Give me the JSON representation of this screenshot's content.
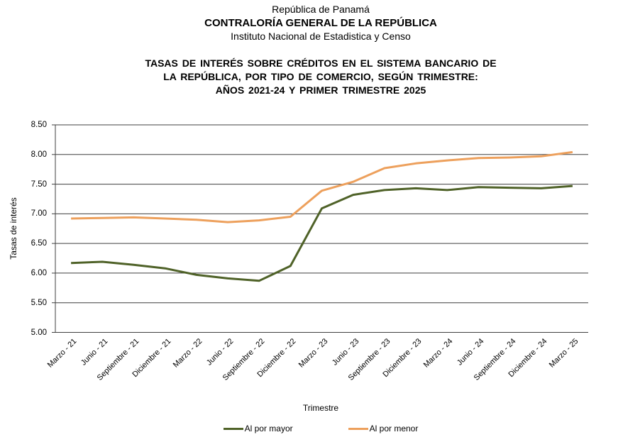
{
  "header": {
    "line1": "República de Panamá",
    "line2": "CONTRALORÍA GENERAL DE LA REPÚBLICA",
    "line3": "Instituto Nacional de Estadistica y Censo"
  },
  "title_lines": [
    "TASAS DE INTERÉS SOBRE CRÉDITOS EN EL SISTEMA BANCARIO DE",
    "LA REPÚBLICA, POR TIPO DE COMERCIO, SEGÚN TRIMESTRE:",
    "AÑOS 2021-24 Y PRIMER TRIMESTRE 2025"
  ],
  "chart_data": {
    "type": "line",
    "title": "Tasas de interés sobre créditos en el sistema bancario, por tipo de comercio, según trimestre",
    "xlabel": "Trimestre",
    "ylabel": "Tasas de interés",
    "ylim": [
      5.0,
      8.5
    ],
    "ytick_step": 0.5,
    "grid": "horizontal",
    "legend_position": "bottom",
    "categories": [
      "Marzo - 21",
      "Junio - 21",
      "Septiembre - 21",
      "Diciembre - 21",
      "Marzo - 22",
      "Junio - 22",
      "Septiembre - 22",
      "Diciembre - 22",
      "Marzo - 23",
      "Junio - 23",
      "Septiembre - 23",
      "Diciembre - 23",
      "Marzo - 24",
      "Junio - 24",
      "Septiembre - 24",
      "Diciembre - 24",
      "Marzo - 25"
    ],
    "series": [
      {
        "name": "Al por mayor",
        "color": "#4F6228",
        "values": [
          6.17,
          6.19,
          6.14,
          6.08,
          5.97,
          5.91,
          5.87,
          6.12,
          7.09,
          7.32,
          7.4,
          7.43,
          7.4,
          7.45,
          7.44,
          7.43,
          7.47
        ]
      },
      {
        "name": "Al por menor",
        "color": "#EDA05C",
        "values": [
          6.92,
          6.93,
          6.94,
          6.92,
          6.9,
          6.86,
          6.89,
          6.95,
          7.39,
          7.54,
          7.77,
          7.85,
          7.9,
          7.94,
          7.95,
          7.97,
          8.04
        ]
      }
    ],
    "axis_color": "#3f3f3f"
  }
}
